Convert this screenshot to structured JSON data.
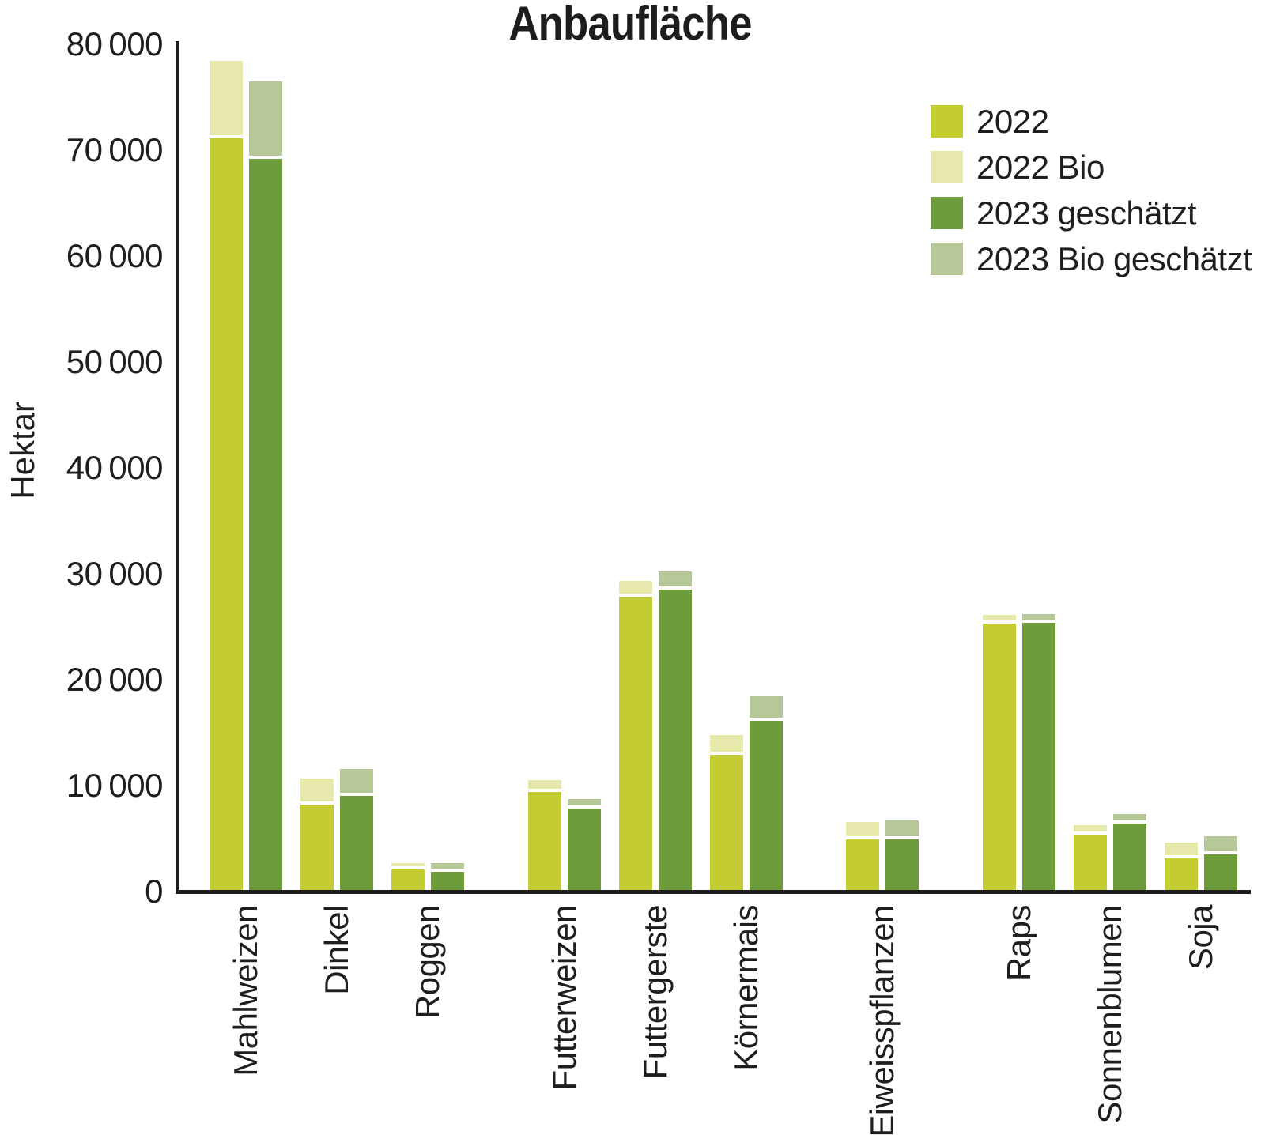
{
  "chart_data": {
    "type": "bar",
    "title": "Anbaufläche",
    "ylabel": "Hektar",
    "ylim": [
      0,
      80000
    ],
    "ytick_step": 10000,
    "ytick_labels": [
      "0",
      "10 000",
      "20 000",
      "30 000",
      "40 000",
      "50 000",
      "60 000",
      "70 000",
      "80 000"
    ],
    "grid": false,
    "legend_position": "top-right",
    "bar_arrangement": "two stacked bars per category: [2022 + 2022 Bio] and [2023 geschätzt + 2023 Bio geschätzt]",
    "categories": [
      "Mahlweizen",
      "Dinkel",
      "Roggen",
      "Futterweizen",
      "Futtergerste",
      "Körnermais",
      "Eiweisspflanzen",
      "Raps",
      "Sonnenblumen",
      "Soja"
    ],
    "category_slots": [
      0,
      1,
      2,
      3.5,
      4.5,
      5.5,
      7,
      8.5,
      9.5,
      10.5
    ],
    "series": [
      {
        "name": "2022",
        "color": "#c3cd31",
        "stack": "left",
        "values": [
          71100,
          8200,
          2100,
          9400,
          27800,
          12900,
          4900,
          25300,
          5400,
          3100
        ]
      },
      {
        "name": "2022 Bio",
        "color": "#e6e9ab",
        "stack": "left",
        "values": [
          7300,
          2500,
          600,
          1100,
          1500,
          1900,
          1700,
          800,
          900,
          1500
        ]
      },
      {
        "name": "2023 geschätzt",
        "color": "#6f9c3a",
        "stack": "right",
        "values": [
          69200,
          9000,
          1900,
          7800,
          28500,
          16100,
          4900,
          25400,
          6400,
          3500
        ]
      },
      {
        "name": "2023 Bio geschätzt",
        "color": "#b6c898",
        "stack": "right",
        "values": [
          7300,
          2600,
          800,
          900,
          1700,
          2400,
          1800,
          800,
          900,
          1700
        ]
      }
    ],
    "legend": [
      {
        "label": "2022",
        "color": "#c3cd31"
      },
      {
        "label": "2022 Bio",
        "color": "#e6e9ab"
      },
      {
        "label": "2023 geschätzt",
        "color": "#6f9c3a"
      },
      {
        "label": "2023 Bio geschätzt",
        "color": "#b6c898"
      }
    ],
    "colors": {
      "axis": "#1d1d1b",
      "text": "#1e1e1c",
      "background": "#ffffff"
    }
  }
}
